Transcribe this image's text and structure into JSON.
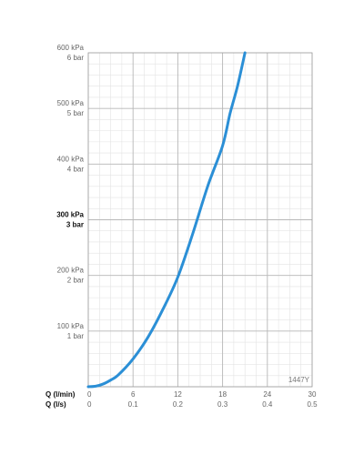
{
  "chart_data": {
    "type": "line",
    "title": "",
    "code_label": "1447Y",
    "x_axis_labels": [
      "Q (l/min)",
      "Q (l/s)"
    ],
    "x_ticks_lmin": [
      "0",
      "6",
      "12",
      "18",
      "24",
      "30"
    ],
    "x_ticks_ls": [
      "0",
      "0.1",
      "0.2",
      "0.3",
      "0.4",
      "0.5"
    ],
    "y_ticks": [
      {
        "kpa": "100 kPa",
        "bar": "1 bar",
        "value": 100
      },
      {
        "kpa": "200 kPa",
        "bar": "2 bar",
        "value": 200
      },
      {
        "kpa": "300 kPa",
        "bar": "3 bar",
        "value": 300,
        "bold": true
      },
      {
        "kpa": "400 kPa",
        "bar": "4 bar",
        "value": 400
      },
      {
        "kpa": "500 kPa",
        "bar": "5 bar",
        "value": 500
      },
      {
        "kpa": "600 kPa",
        "bar": "6 bar",
        "value": 600
      }
    ],
    "xlim": [
      0,
      30
    ],
    "ylim": [
      0,
      600
    ],
    "grid": true,
    "line_color": "#2b8fd6",
    "series": [
      {
        "x": [
          0,
          1,
          2,
          3,
          4,
          6,
          8,
          10,
          12,
          14,
          16,
          18,
          19,
          20,
          21
        ],
        "y": [
          0,
          1,
          5,
          12,
          21,
          50,
          89,
          139,
          197,
          275,
          360,
          433,
          491,
          540,
          600
        ]
      }
    ]
  }
}
